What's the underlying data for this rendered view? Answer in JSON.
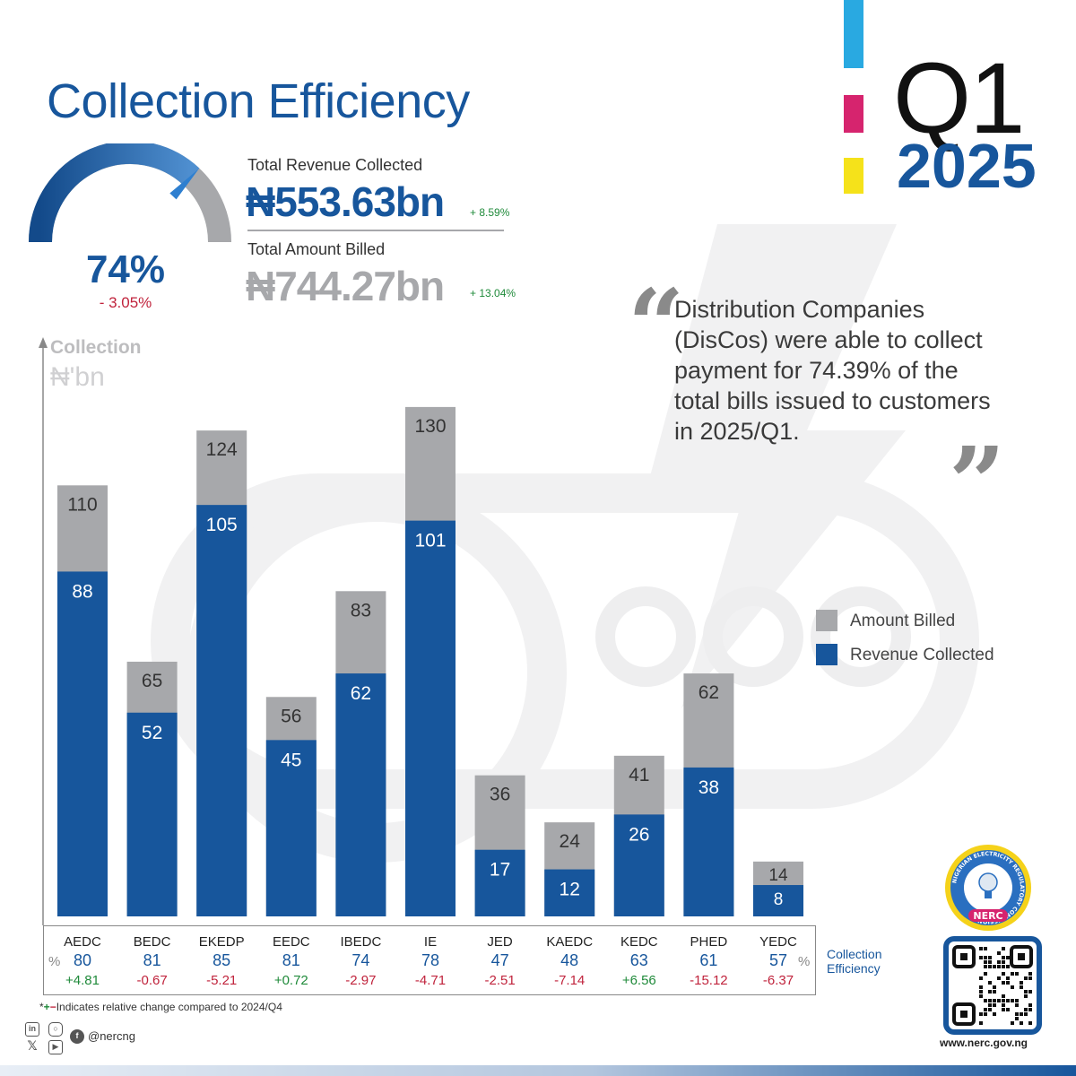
{
  "header": {
    "title": "Collection Efficiency",
    "period_quarter": "Q1",
    "period_year": "2025"
  },
  "colors": {
    "brand_blue": "#17569c",
    "billed_gray": "#a7a8ab",
    "positive": "#1f8a3a",
    "negative": "#c0233c",
    "stripe_cyan": "#29a9e1",
    "stripe_magenta": "#d6246e",
    "stripe_yellow": "#f5e21a"
  },
  "gauge": {
    "value_label": "74%",
    "value_fraction": 0.74,
    "change": "- 3.05%"
  },
  "kpis": {
    "revenue_label": "Total Revenue Collected",
    "revenue_value": "₦553.63bn",
    "revenue_change": "+ 8.59%",
    "billed_label": "Total Amount Billed",
    "billed_value": "₦744.27bn",
    "billed_change": "+ 13.04%"
  },
  "quote": {
    "text": "Distribution Companies (DisCos) were able to collect payment for 74.39% of the total bills issued to customers in 2025/Q1.",
    "open_mark": "“",
    "close_mark": "”"
  },
  "chart_data": {
    "type": "bar",
    "ylabel": "Collection",
    "yunit": "₦'bn",
    "categories": [
      "AEDC",
      "BEDC",
      "EKEDP",
      "EEDC",
      "IBEDC",
      "IE",
      "JED",
      "KAEDC",
      "KEDC",
      "PHED",
      "YEDC"
    ],
    "series": [
      {
        "name": "Amount Billed",
        "values": [
          110,
          65,
          124,
          56,
          83,
          130,
          36,
          24,
          41,
          62,
          14
        ]
      },
      {
        "name": "Revenue Collected",
        "values": [
          88,
          52,
          105,
          45,
          62,
          101,
          17,
          12,
          26,
          38,
          8
        ]
      }
    ],
    "collection_efficiency": [
      80,
      81,
      85,
      81,
      74,
      78,
      47,
      48,
      63,
      61,
      57
    ],
    "efficiency_change": [
      "+4.81",
      "-0.67",
      "-5.21",
      "+0.72",
      "-2.97",
      "-4.71",
      "-2.51",
      "-7.14",
      "+6.56",
      "-15.12",
      "-6.37"
    ],
    "legend_position": "right"
  },
  "table": {
    "percent_mark": "%",
    "efficiency_label_line1": "Collection",
    "efficiency_label_line2": "Efficiency"
  },
  "footnote": {
    "star": "*",
    "plus": "+",
    "minus": "−",
    "text": "Indicates relative change compared to 2024/Q4"
  },
  "social": {
    "handle": "@nercng",
    "icons": [
      "linkedin-icon",
      "instagram-icon",
      "x-icon",
      "youtube-icon",
      "facebook-icon"
    ]
  },
  "logo": {
    "ring_text": "NIGERIAN ELECTRICITY REGULATORY COMMISSION",
    "acronym": "NERC"
  },
  "website": "www.nerc.gov.ng"
}
